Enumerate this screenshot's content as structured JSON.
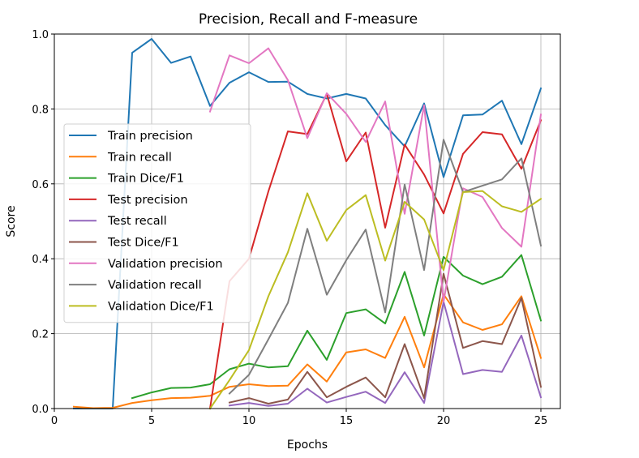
{
  "chart_data": {
    "type": "line",
    "title": "Precision, Recall and F-measure",
    "xlabel": "Epochs",
    "ylabel": "Score",
    "xlim": [
      0,
      26
    ],
    "ylim": [
      0.0,
      1.0
    ],
    "xticks": [
      0,
      5,
      10,
      15,
      20,
      25
    ],
    "yticks": [
      0.0,
      0.2,
      0.4,
      0.6,
      0.8,
      1.0
    ],
    "grid": true,
    "legend_position": "center-left",
    "series": [
      {
        "name": "Train precision",
        "color": "#1f77b4",
        "x": [
          1,
          2,
          3,
          4,
          5,
          6,
          7,
          8,
          9,
          10,
          11,
          12,
          13,
          14,
          15,
          16,
          17,
          18,
          19,
          20,
          21,
          22,
          23,
          24,
          25
        ],
        "y": [
          0.0,
          0.0,
          0.0,
          0.95,
          0.987,
          0.923,
          0.94,
          0.808,
          0.87,
          0.898,
          0.872,
          0.873,
          0.84,
          0.828,
          0.84,
          0.828,
          0.757,
          0.7,
          0.815,
          0.618,
          0.783,
          0.785,
          0.822,
          0.706,
          0.855
        ]
      },
      {
        "name": "Train recall",
        "color": "#ff7f0e",
        "x": [
          1,
          2,
          3,
          4,
          5,
          6,
          7,
          8,
          9,
          10,
          11,
          12,
          13,
          14,
          15,
          16,
          17,
          18,
          19,
          20,
          21,
          22,
          23,
          24,
          25
        ],
        "y": [
          0.005,
          0.001,
          0.002,
          0.015,
          0.022,
          0.028,
          0.029,
          0.034,
          0.058,
          0.065,
          0.06,
          0.061,
          0.118,
          0.072,
          0.15,
          0.158,
          0.135,
          0.245,
          0.11,
          0.305,
          0.23,
          0.21,
          0.225,
          0.3,
          0.135
        ]
      },
      {
        "name": "Train Dice/F1",
        "color": "#2ca02c",
        "x": [
          4,
          5,
          6,
          7,
          8,
          9,
          10,
          11,
          12,
          13,
          14,
          15,
          16,
          17,
          18,
          19,
          20,
          21,
          22,
          23,
          24,
          25
        ],
        "y": [
          0.028,
          0.043,
          0.055,
          0.056,
          0.065,
          0.105,
          0.12,
          0.11,
          0.113,
          0.208,
          0.13,
          0.255,
          0.265,
          0.227,
          0.365,
          0.195,
          0.405,
          0.355,
          0.332,
          0.352,
          0.41,
          0.235
        ]
      },
      {
        "name": "Test precision",
        "color": "#d62728",
        "x": [
          8,
          9,
          10,
          11,
          12,
          13,
          14,
          15,
          16,
          17,
          18,
          19,
          20,
          21,
          22,
          23,
          24,
          25
        ],
        "y": [
          0.0,
          0.34,
          0.4,
          0.58,
          0.74,
          0.733,
          0.84,
          0.66,
          0.737,
          0.483,
          0.705,
          0.625,
          0.521,
          0.68,
          0.738,
          0.732,
          0.64,
          0.77
        ]
      },
      {
        "name": "Test recall",
        "color": "#9467bd",
        "x": [
          9,
          10,
          11,
          12,
          13,
          14,
          15,
          16,
          17,
          18,
          19,
          20,
          21,
          22,
          23,
          24,
          25
        ],
        "y": [
          0.008,
          0.015,
          0.007,
          0.013,
          0.053,
          0.016,
          0.031,
          0.045,
          0.015,
          0.097,
          0.015,
          0.285,
          0.092,
          0.103,
          0.098,
          0.195,
          0.03
        ]
      },
      {
        "name": "Test Dice/F1",
        "color": "#8c564b",
        "x": [
          9,
          10,
          11,
          12,
          13,
          14,
          15,
          16,
          17,
          18,
          19,
          20,
          21,
          22,
          23,
          24,
          25
        ],
        "y": [
          0.016,
          0.028,
          0.013,
          0.024,
          0.098,
          0.03,
          0.058,
          0.083,
          0.03,
          0.172,
          0.028,
          0.36,
          0.162,
          0.18,
          0.172,
          0.295,
          0.058
        ]
      },
      {
        "name": "Validation precision",
        "color": "#e377c2",
        "x": [
          8,
          9,
          10,
          11,
          12,
          13,
          14,
          15,
          16,
          17,
          18,
          19,
          20,
          21,
          22,
          23,
          24,
          25
        ],
        "y": [
          0.793,
          0.943,
          0.922,
          0.962,
          0.877,
          0.722,
          0.842,
          0.787,
          0.712,
          0.82,
          0.52,
          0.81,
          0.285,
          0.588,
          0.565,
          0.482,
          0.432,
          0.785
        ]
      },
      {
        "name": "Validation recall",
        "color": "#7f7f7f",
        "x": [
          9,
          10,
          11,
          12,
          13,
          14,
          15,
          16,
          17,
          18,
          19,
          20,
          21,
          22,
          23,
          24,
          25
        ],
        "y": [
          0.04,
          0.09,
          0.185,
          0.282,
          0.48,
          0.304,
          0.396,
          0.478,
          0.257,
          0.598,
          0.37,
          0.718,
          0.578,
          0.595,
          0.612,
          0.668,
          0.435
        ]
      },
      {
        "name": "Validation Dice/F1",
        "color": "#bcbd22",
        "x": [
          8,
          9,
          10,
          11,
          12,
          13,
          14,
          15,
          16,
          17,
          18,
          19,
          20,
          21,
          22,
          23,
          24,
          25
        ],
        "y": [
          0.0,
          0.076,
          0.156,
          0.3,
          0.417,
          0.575,
          0.448,
          0.53,
          0.57,
          0.395,
          0.552,
          0.505,
          0.37,
          0.578,
          0.581,
          0.54,
          0.525,
          0.56
        ]
      }
    ]
  }
}
